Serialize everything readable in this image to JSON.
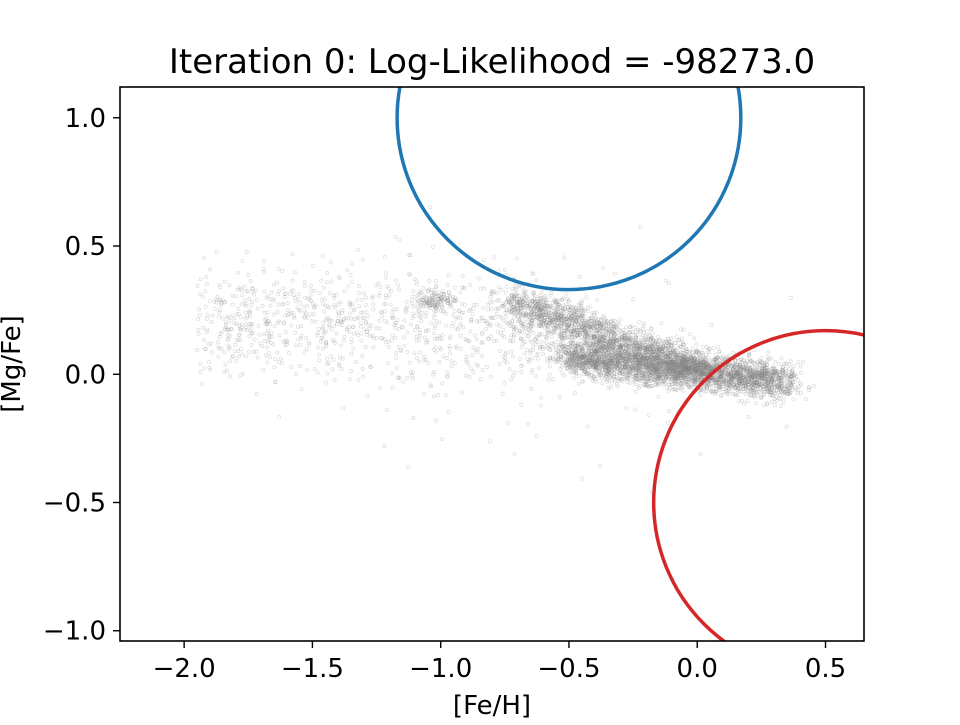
{
  "chart_data": {
    "type": "scatter",
    "title": "Iteration 0: Log-Likelihood = -98273.0",
    "xlabel": "[Fe/H]",
    "ylabel": "[Mg/Fe]",
    "xlim": [
      -2.25,
      0.65
    ],
    "ylim": [
      -1.04,
      1.12
    ],
    "xticks": [
      -2.0,
      -1.5,
      -1.0,
      -0.5,
      0.0,
      0.5
    ],
    "xtick_labels": [
      "−2.0",
      "−1.5",
      "−1.0",
      "−0.5",
      "0.0",
      "0.5"
    ],
    "yticks": [
      -1.0,
      -0.5,
      0.0,
      0.5,
      1.0
    ],
    "ytick_labels": [
      "−1.0",
      "−0.5",
      "0.0",
      "0.5",
      "1.0"
    ],
    "grid": false,
    "legend": "none",
    "scatter_color": "#808080",
    "scatter_clusters": [
      {
        "kind": "high-alpha sequence",
        "x_range": [
          -0.7,
          0.0
        ],
        "y_range": [
          0.05,
          0.3
        ],
        "approx_points": 3000
      },
      {
        "kind": "low-alpha clump",
        "x_range": [
          -0.5,
          0.4
        ],
        "y_range": [
          -0.1,
          0.12
        ],
        "approx_points": 6000
      },
      {
        "kind": "metal-poor halo",
        "x_range": [
          -2.1,
          -0.6
        ],
        "y_range": [
          -0.4,
          0.6
        ],
        "approx_points": 1200
      }
    ],
    "components": [
      {
        "color": "#1f77b4",
        "center": [
          -0.5,
          1.0
        ],
        "radius_y": 0.67
      },
      {
        "color": "#d62728",
        "center": [
          0.5,
          -0.5
        ],
        "radius_y": 0.67
      }
    ]
  }
}
